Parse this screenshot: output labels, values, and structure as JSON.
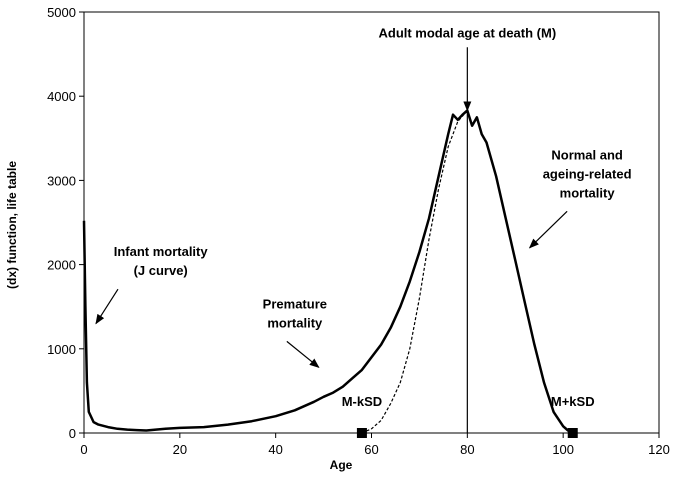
{
  "chart_data": {
    "type": "line",
    "title": "",
    "xlabel": "Age",
    "ylabel": "(dx) function, life table",
    "xlim": [
      0,
      120
    ],
    "ylim": [
      0,
      5000
    ],
    "x_ticks": [
      0,
      20,
      40,
      60,
      80,
      100,
      120
    ],
    "y_ticks": [
      0,
      1000,
      2000,
      3000,
      4000,
      5000
    ],
    "grid": false,
    "series": [
      {
        "style": "solid",
        "color": "#000000",
        "x": [
          0,
          0.3,
          0.6,
          1,
          2,
          3,
          5,
          7,
          9,
          11,
          13,
          15,
          17,
          20,
          25,
          30,
          35,
          40,
          44,
          48,
          50,
          52,
          54,
          56,
          58,
          60,
          62,
          64,
          66,
          68,
          70,
          72,
          74,
          75,
          76,
          77,
          78,
          79,
          80,
          81,
          82,
          83,
          84,
          86,
          88,
          90,
          92,
          94,
          96,
          98,
          100,
          101,
          102
        ],
        "values": [
          2520,
          1500,
          600,
          250,
          130,
          100,
          70,
          50,
          40,
          35,
          30,
          40,
          50,
          60,
          70,
          100,
          140,
          200,
          270,
          370,
          430,
          480,
          550,
          650,
          750,
          900,
          1050,
          1250,
          1500,
          1800,
          2150,
          2550,
          3050,
          3300,
          3550,
          3780,
          3720,
          3780,
          3830,
          3650,
          3750,
          3550,
          3450,
          3050,
          2550,
          2050,
          1550,
          1050,
          600,
          250,
          80,
          30,
          10
        ]
      },
      {
        "style": "dashed",
        "color": "#000000",
        "x": [
          58,
          60,
          62,
          64,
          66,
          68,
          70,
          72,
          74,
          76,
          78,
          80
        ],
        "values": [
          0,
          50,
          150,
          350,
          600,
          1000,
          1600,
          2300,
          2900,
          3400,
          3700,
          3830
        ]
      }
    ],
    "reference_lines": [
      {
        "x": 80
      }
    ],
    "markers": [
      {
        "x": 58,
        "y": 0,
        "label": "M-kSD"
      },
      {
        "x": 102,
        "y": 0,
        "label": "M+kSD"
      }
    ],
    "annotations": [
      {
        "lines": [
          "Adult modal age at death (M)"
        ],
        "text_x": 80,
        "text_y": 4700,
        "arrow_to": [
          80,
          3830
        ]
      },
      {
        "lines": [
          "Normal and",
          "ageing-related",
          "mortality"
        ],
        "text_x": 105,
        "text_y": 3250,
        "arrow_to": [
          93,
          2200
        ]
      },
      {
        "lines": [
          "Infant mortality",
          "(J curve)"
        ],
        "text_x": 16,
        "text_y": 2100,
        "arrow_to": [
          2.5,
          1300
        ]
      },
      {
        "lines": [
          "Premature",
          "mortality"
        ],
        "text_x": 44,
        "text_y": 1480,
        "arrow_to": [
          49,
          780
        ]
      }
    ]
  }
}
